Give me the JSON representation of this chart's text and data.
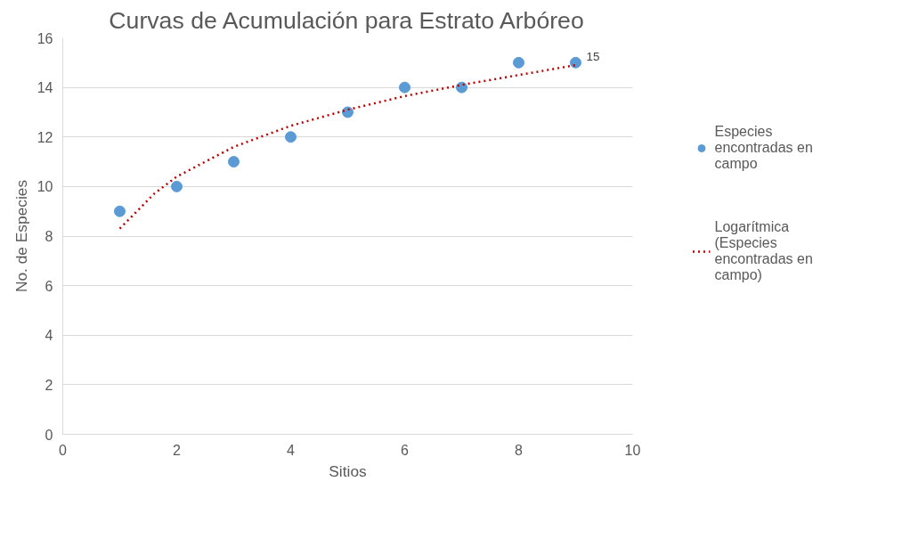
{
  "chart_data": {
    "type": "scatter",
    "title": "Curvas de Acumulación para Estrato Arbóreo",
    "xlabel": "Sitios",
    "ylabel": "No. de Especies",
    "x": [
      1,
      2,
      3,
      4,
      5,
      6,
      7,
      8,
      9
    ],
    "series": [
      {
        "name": "Especies encontradas en campo",
        "color": "#5b9bd5",
        "values": [
          9,
          10,
          11,
          12,
          13,
          14,
          14,
          15,
          15
        ],
        "value_labels": [
          null,
          null,
          null,
          null,
          null,
          null,
          null,
          null,
          "15"
        ],
        "marker": "circle"
      },
      {
        "name": "Logarítmica (Especies encontradas en campo)",
        "type": "line",
        "color": "#c00000",
        "line_style": "dotted",
        "marker": "none",
        "x": [
          1,
          1.6,
          2,
          3,
          4,
          5,
          6,
          7,
          8,
          9
        ],
        "values": [
          8.3,
          9.7,
          10.4,
          11.6,
          12.45,
          13.1,
          13.65,
          14.1,
          14.5,
          14.9
        ]
      }
    ],
    "xlim": [
      0,
      10
    ],
    "xticks": [
      0,
      2,
      4,
      6,
      8,
      10
    ],
    "ylim": [
      0,
      16
    ],
    "yticks": [
      0,
      2,
      4,
      6,
      8,
      10,
      12,
      14,
      16
    ],
    "grid": "y",
    "legend": "right"
  }
}
